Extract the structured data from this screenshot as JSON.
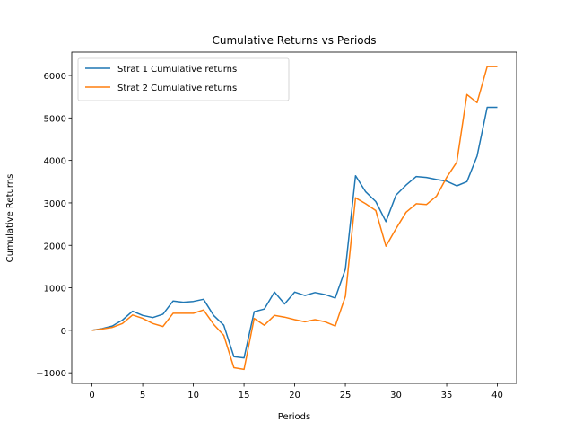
{
  "chart_data": {
    "type": "line",
    "title": "Cumulative Returns vs Periods",
    "xlabel": "Periods",
    "ylabel": "Cumulative Returns",
    "xlim": [
      -2,
      41.9
    ],
    "ylim": [
      -1250,
      6550
    ],
    "xticks": [
      0,
      5,
      10,
      15,
      20,
      25,
      30,
      35,
      40
    ],
    "yticks": [
      -1000,
      0,
      1000,
      2000,
      3000,
      4000,
      5000,
      6000
    ],
    "grid": false,
    "legend_position": "top-left",
    "x": [
      0,
      1,
      2,
      3,
      4,
      5,
      6,
      7,
      8,
      9,
      10,
      11,
      12,
      13,
      14,
      15,
      16,
      17,
      18,
      19,
      20,
      21,
      22,
      23,
      24,
      25,
      26,
      27,
      28,
      29,
      30,
      31,
      32,
      33,
      34,
      35,
      36,
      37,
      38,
      39,
      40
    ],
    "series": [
      {
        "name": "Strat 1 Cumulative returns",
        "color": "#1f77b4",
        "values": [
          0,
          40,
          100,
          240,
          450,
          350,
          300,
          380,
          690,
          660,
          680,
          730,
          350,
          120,
          -620,
          -650,
          440,
          500,
          900,
          620,
          900,
          820,
          890,
          840,
          760,
          1440,
          3640,
          3260,
          3030,
          2560,
          3180,
          3420,
          3620,
          3600,
          3550,
          3510,
          3400,
          3500,
          4100,
          5250,
          5250
        ]
      },
      {
        "name": "Strat 2 Cumulative returns",
        "color": "#ff7f0e",
        "values": [
          0,
          30,
          70,
          160,
          360,
          280,
          160,
          90,
          400,
          400,
          400,
          480,
          140,
          -120,
          -880,
          -920,
          280,
          120,
          350,
          310,
          250,
          200,
          250,
          200,
          100,
          800,
          3120,
          2980,
          2820,
          1980,
          2390,
          2780,
          2980,
          2960,
          3160,
          3600,
          3960,
          5550,
          5360,
          6210,
          6210
        ]
      }
    ]
  }
}
